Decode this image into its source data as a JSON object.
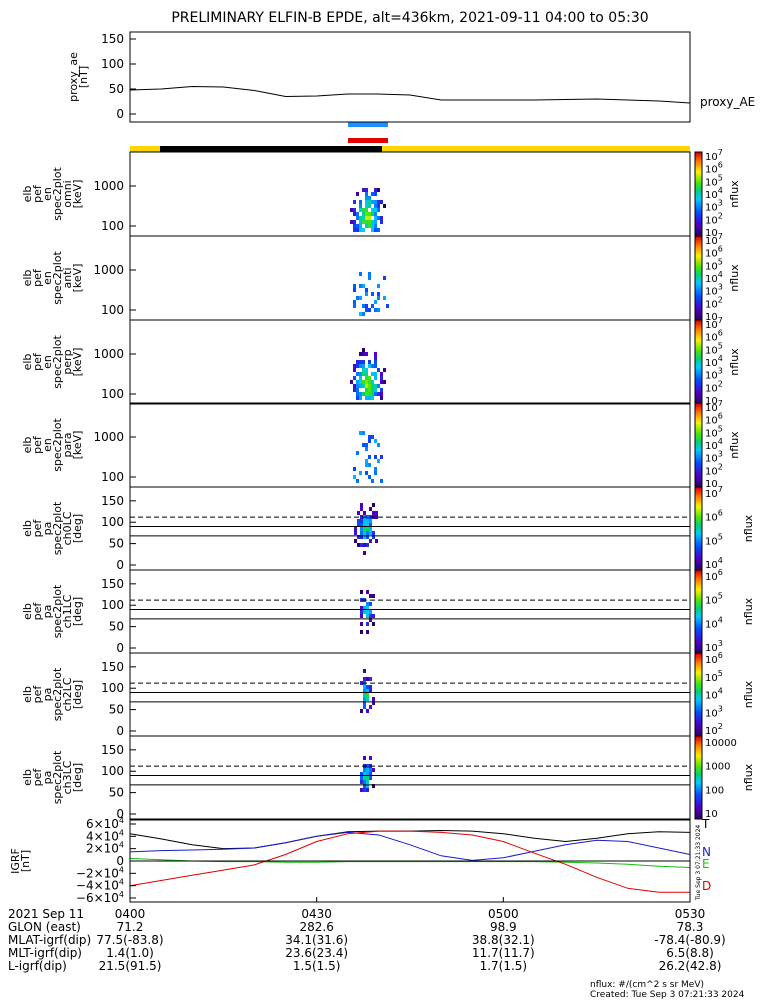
{
  "title": "PRELIMINARY ELFIN-B EPDE, alt=436km, 2021-09-11 04:00 to 05:30",
  "colors": {
    "orbit_yellow": "#ffd400",
    "orbit_black": "#000000",
    "blue_bar": "#1e90ff",
    "red_bar": "#e00000",
    "bn": "#1a1acc",
    "be": "#10c010",
    "bd": "#e00000",
    "bt": "#000000"
  },
  "proxy_ae": {
    "ylabel": [
      "proxy_ae",
      "[nT]"
    ],
    "series_label": "proxy_AE",
    "ticks": [
      "150",
      "100",
      "50",
      "0"
    ],
    "ylim": [
      0,
      160
    ]
  },
  "spectra": [
    {
      "ylabel": [
        "elb",
        "pef",
        "en",
        "spec2plot",
        "omni",
        "[keV]"
      ],
      "ticks": [
        "1000",
        "100"
      ],
      "cb_ticks": [
        "10^7",
        "10^6",
        "10^5",
        "10^4",
        "10^3",
        "10^2",
        "10"
      ],
      "cb_label": "nflux"
    },
    {
      "ylabel": [
        "elb",
        "pef",
        "en",
        "spec2plot",
        "anti",
        "[keV]"
      ],
      "ticks": [
        "1000",
        "100"
      ],
      "cb_ticks": [
        "10^7",
        "10^6",
        "10^5",
        "10^4",
        "10^3",
        "10^2",
        "10"
      ],
      "cb_label": "nflux"
    },
    {
      "ylabel": [
        "elb",
        "pef",
        "en",
        "spec2plot",
        "perp",
        "[keV]"
      ],
      "ticks": [
        "1000",
        "100"
      ],
      "cb_ticks": [
        "10^7",
        "10^6",
        "10^5",
        "10^4",
        "10^3",
        "10^2",
        "10"
      ],
      "cb_label": "nflux"
    },
    {
      "ylabel": [
        "elb",
        "pef",
        "en",
        "spec2plot",
        "para",
        "[keV]"
      ],
      "ticks": [
        "1000",
        "100"
      ],
      "cb_ticks": [
        "10^7",
        "10^6",
        "10^5",
        "10^4",
        "10^3",
        "10^2",
        "10"
      ],
      "cb_label": "nflux"
    }
  ],
  "pitch_angle": [
    {
      "ylabel": [
        "elb",
        "pef",
        "pa",
        "spec2plot",
        "ch0LC",
        "[deg]"
      ],
      "ticks": [
        "150",
        "100",
        "50",
        "0"
      ],
      "cb_ticks": [
        "10^7",
        "10^6",
        "10^5",
        "10^4"
      ],
      "cb_label": "nflux"
    },
    {
      "ylabel": [
        "elb",
        "pef",
        "pa",
        "spec2plot",
        "ch1LC",
        "[deg]"
      ],
      "ticks": [
        "150",
        "100",
        "50",
        "0"
      ],
      "cb_ticks": [
        "10^6",
        "10^5",
        "10^4",
        "10^3"
      ],
      "cb_label": "nflux"
    },
    {
      "ylabel": [
        "elb",
        "pef",
        "pa",
        "spec2plot",
        "ch2LC",
        "[deg]"
      ],
      "ticks": [
        "150",
        "100",
        "50",
        "0"
      ],
      "cb_ticks": [
        "10^6",
        "10^5",
        "10^4",
        "10^3",
        "10^2"
      ],
      "cb_label": "nflux"
    },
    {
      "ylabel": [
        "elb",
        "pef",
        "pa",
        "spec2plot",
        "ch3LC",
        "[deg]"
      ],
      "ticks": [
        "150",
        "100",
        "50",
        "0"
      ],
      "cb_ticks": [
        "10000",
        "1000",
        "100",
        "10"
      ],
      "cb_label": "nflux"
    }
  ],
  "bfield": {
    "ylabel": [
      "IGRF",
      "[nT]"
    ],
    "ticks": [
      "6×10^4",
      "4×10^4",
      "2×10^4",
      "0",
      "−2×10^4",
      "−4×10^4",
      "−6×10^4"
    ],
    "ylim": [
      -60000,
      60000
    ],
    "components": [
      "T",
      "N",
      "E",
      "D"
    ],
    "created_vertical": "Tue Sep  3 07:21:33 2024"
  },
  "xaxis": {
    "time_labels": [
      "2021 Sep 11",
      "0400",
      "0430",
      "0500",
      "0530"
    ],
    "rows": [
      {
        "label": "GLON (east)",
        "values": [
          "71.2",
          "282.6",
          "98.9",
          "78.3"
        ]
      },
      {
        "label": "MLAT-igrf(dip)",
        "values": [
          "77.5(-83.8)",
          "34.1(31.6)",
          "38.8(32.1)",
          "-78.4(-80.9)"
        ]
      },
      {
        "label": "MLT-igrf(dip)",
        "values": [
          "1.4(1.0)",
          "23.6(23.4)",
          "11.7(11.7)",
          "6.5(8.8)"
        ]
      },
      {
        "label": "L-igrf(dip)",
        "values": [
          "21.5(91.5)",
          "1.5(1.5)",
          "1.7(1.5)",
          "26.2(42.8)"
        ]
      }
    ]
  },
  "footer": {
    "units": "nflux: #/(cm^2 s sr MeV)",
    "created": "Created: Tue Sep  3 07:21:33 2024"
  },
  "chart_data": [
    {
      "type": "line",
      "title": "PRELIMINARY ELFIN-B EPDE, alt=436km, 2021-09-11 04:00 to 05:30",
      "ylabel": "proxy_ae [nT]",
      "ylim": [
        0,
        160
      ],
      "x": [
        "04:00",
        "04:05",
        "04:10",
        "04:15",
        "04:20",
        "04:25",
        "04:30",
        "04:35",
        "04:40",
        "04:45",
        "04:50",
        "04:55",
        "05:00",
        "05:05",
        "05:10",
        "05:15",
        "05:20",
        "05:25",
        "05:30"
      ],
      "series": [
        {
          "name": "proxy_AE",
          "values": [
            48,
            50,
            55,
            54,
            47,
            35,
            36,
            40,
            40,
            38,
            28,
            28,
            28,
            28,
            29,
            30,
            28,
            26,
            22
          ]
        }
      ]
    },
    {
      "type": "line",
      "ylabel": "IGRF [nT]",
      "ylim": [
        -60000,
        60000
      ],
      "x": [
        "04:00",
        "04:05",
        "04:10",
        "04:15",
        "04:20",
        "04:25",
        "04:30",
        "04:35",
        "04:40",
        "04:45",
        "04:50",
        "04:55",
        "05:00",
        "05:05",
        "05:10",
        "05:15",
        "05:20",
        "05:25",
        "05:30"
      ],
      "series": [
        {
          "name": "T",
          "values": [
            42000,
            34000,
            25000,
            19000,
            20000,
            28000,
            38000,
            45000,
            46000,
            46000,
            47000,
            46000,
            42000,
            35000,
            30000,
            35000,
            42000,
            45000,
            44000
          ]
        },
        {
          "name": "N",
          "values": [
            14000,
            16000,
            17000,
            18000,
            20000,
            28000,
            38000,
            44000,
            40000,
            25000,
            8000,
            1000,
            5000,
            15000,
            25000,
            32000,
            30000,
            20000,
            10000
          ]
        },
        {
          "name": "E",
          "values": [
            4000,
            2000,
            0,
            -1000,
            -1000,
            -2000,
            -2000,
            -1000,
            -1000,
            -1000,
            -1000,
            -1000,
            -1000,
            -1000,
            -2000,
            -3000,
            -5000,
            -8000,
            -10000
          ]
        },
        {
          "name": "D",
          "values": [
            -38000,
            -30000,
            -22000,
            -14000,
            -6000,
            10000,
            30000,
            42000,
            46000,
            46000,
            44000,
            40000,
            30000,
            12000,
            -5000,
            -25000,
            -42000,
            -48000,
            -48000
          ]
        }
      ]
    }
  ]
}
